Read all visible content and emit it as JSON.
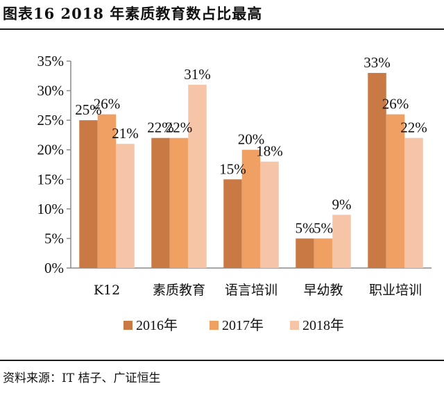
{
  "header": {
    "title": "图表16 2018 年素质教育数占比最高"
  },
  "footer": {
    "source": "资料来源：IT 桔子、广证恒生"
  },
  "chart_data": {
    "type": "bar",
    "title": "图表16 2018 年素质教育数占比最高",
    "categories": [
      "K12",
      "素质教育",
      "语言培训",
      "早幼教",
      "职业培训"
    ],
    "series": [
      {
        "name": "2016年",
        "color": "#c97a44",
        "values": [
          25,
          22,
          15,
          5,
          33
        ]
      },
      {
        "name": "2017年",
        "color": "#f0a063",
        "values": [
          26,
          22,
          20,
          5,
          26
        ]
      },
      {
        "name": "2018年",
        "color": "#f6c4a6",
        "values": [
          21,
          31,
          18,
          9,
          22
        ]
      }
    ],
    "value_suffix": "%",
    "yticks": [
      "0%",
      "5%",
      "10%",
      "15%",
      "20%",
      "25%",
      "30%",
      "35%"
    ],
    "ylim": [
      0,
      35
    ],
    "legend_position": "bottom",
    "grid": false
  }
}
